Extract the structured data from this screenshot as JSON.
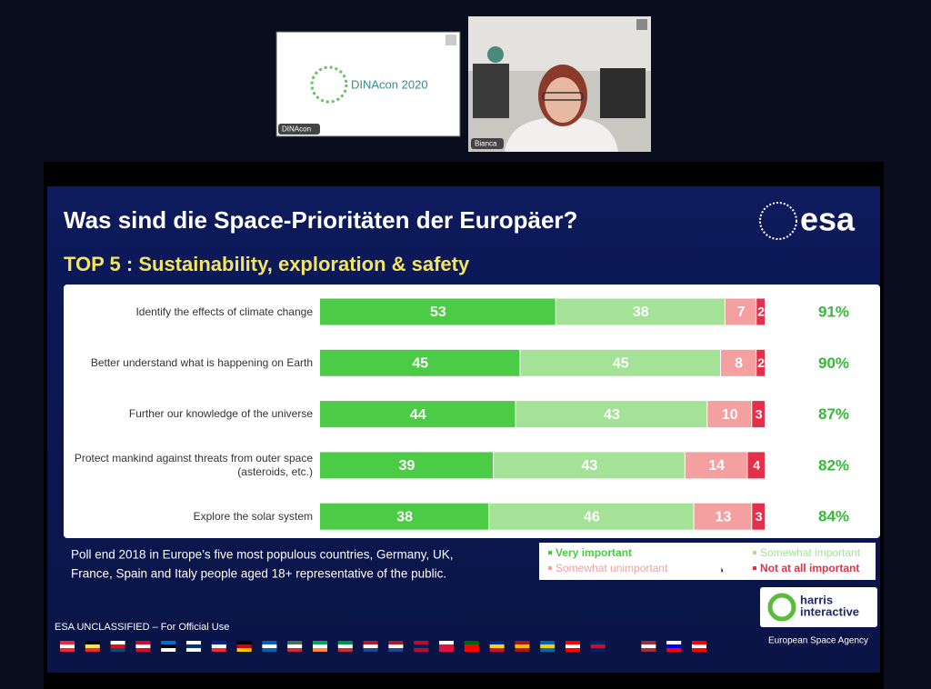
{
  "meeting": {
    "tiles": [
      {
        "label": "DINAcon",
        "content": "DINAcon 2020"
      },
      {
        "label": "Bianca"
      }
    ]
  },
  "slide": {
    "logo": "esa",
    "note": [
      "Poll end 2018 in Europe’s five most populous countries, Germany, UK,",
      "France, Spain and Italy people aged 18+ representative of the public."
    ],
    "classification": "ESA UNCLASSIFIED – For Official Use",
    "partner_logo": [
      "harris",
      "interactive"
    ],
    "agency": "European Space Agency"
  },
  "chart_data": {
    "type": "stacked_bar_horizontal",
    "title": "Was sind die Space-Prioritäten der Europäer?",
    "subtitle": "TOP 5 : Sustainability, exploration & safety",
    "categories": [
      "Identify the effects of climate change",
      "Better understand what is happening on Earth",
      "Further our knowledge of the universe",
      "Protect mankind against threats from outer space (asteroids, etc.)",
      "Explore the solar system"
    ],
    "series": [
      {
        "name": "Very important",
        "color": "#4ccb47",
        "values": [
          53,
          45,
          44,
          39,
          38
        ]
      },
      {
        "name": "Somewhat important",
        "color": "#a4e298",
        "values": [
          38,
          45,
          43,
          43,
          46
        ]
      },
      {
        "name": "Somewhat unimportant",
        "color": "#f4a0a0",
        "values": [
          7,
          8,
          10,
          14,
          13
        ]
      },
      {
        "name": "Not at all important",
        "color": "#e5304a",
        "values": [
          2,
          2,
          3,
          4,
          3
        ]
      }
    ],
    "totals": {
      "color": "#38b838",
      "values": [
        91,
        90,
        87,
        82,
        84
      ],
      "value_labels": [
        "91%",
        "90%",
        "87%",
        "82%",
        "84%"
      ]
    }
  }
}
